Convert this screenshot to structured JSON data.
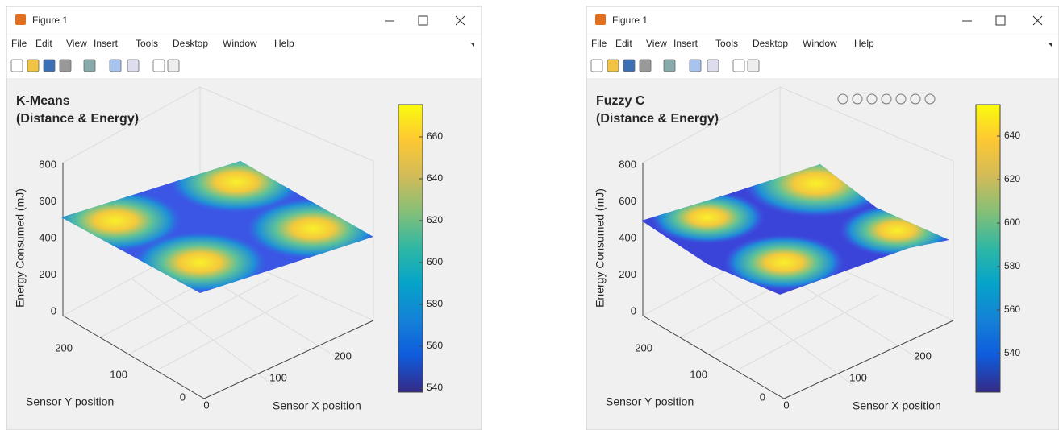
{
  "windows": [
    {
      "title": "Figure 1",
      "menu": [
        "File",
        "Edit",
        "View",
        "Insert",
        "Tools",
        "Desktop",
        "Window",
        "Help"
      ],
      "plot": {
        "title_lines": [
          "K-Means",
          "(Distance & Energy)"
        ],
        "zlabel": "Energy Consumed (mJ)",
        "xlabel": "Sensor X position",
        "ylabel": "Sensor Y position",
        "zticks": [
          0,
          200,
          400,
          600,
          800
        ],
        "yticks": [
          0,
          100,
          200
        ],
        "xticks": [
          0,
          100,
          200
        ],
        "colorbar_ticks": [
          540,
          560,
          580,
          600,
          620,
          640,
          660
        ]
      }
    },
    {
      "title": "Figure 1",
      "menu": [
        "File",
        "Edit",
        "View",
        "Insert",
        "Tools",
        "Desktop",
        "Window",
        "Help"
      ],
      "plot": {
        "title_lines": [
          "Fuzzy C",
          "(Distance & Energy)"
        ],
        "zlabel": "Energy Consumed (mJ)",
        "xlabel": "Sensor X position",
        "ylabel": "Sensor Y position",
        "zticks": [
          0,
          200,
          400,
          600,
          800
        ],
        "yticks": [
          0,
          100,
          200
        ],
        "xticks": [
          0,
          100,
          200
        ],
        "colorbar_ticks": [
          540,
          560,
          580,
          600,
          620,
          640
        ]
      }
    }
  ]
}
